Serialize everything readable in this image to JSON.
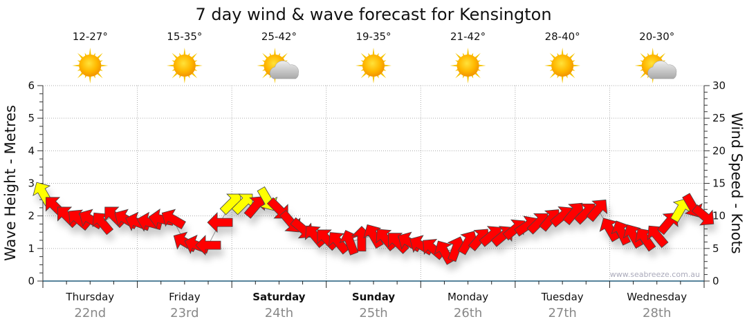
{
  "chart_data": {
    "type": "line",
    "title": "7 day wind & wave forecast for Kensington",
    "ylabel_left": "Wave Height - Metres",
    "ylabel_right": "Wind Speed - Knots",
    "ylim_left": [
      0,
      6
    ],
    "ylim_right": [
      0,
      30
    ],
    "yticks_left": [
      "0",
      "1",
      "2",
      "3",
      "4",
      "5",
      "6"
    ],
    "yticks_right": [
      "0",
      "5",
      "10",
      "15",
      "20",
      "25",
      "30"
    ],
    "grid": true,
    "watermark": "www.seabreeze.com.au",
    "days": [
      {
        "name": "Thursday",
        "date": "22nd",
        "temp": "12-27°",
        "icon": "sunny",
        "bold": false
      },
      {
        "name": "Friday",
        "date": "23rd",
        "temp": "15-35°",
        "icon": "sunny",
        "bold": false
      },
      {
        "name": "Saturday",
        "date": "24th",
        "temp": "25-42°",
        "icon": "partly-cloudy",
        "bold": true
      },
      {
        "name": "Sunday",
        "date": "25th",
        "temp": "19-35°",
        "icon": "sunny",
        "bold": true
      },
      {
        "name": "Monday",
        "date": "26th",
        "temp": "21-42°",
        "icon": "sunny",
        "bold": false
      },
      {
        "name": "Tuesday",
        "date": "27th",
        "temp": "28-40°",
        "icon": "sunny",
        "bold": false
      },
      {
        "name": "Wednesday",
        "date": "28th",
        "temp": "20-30°",
        "icon": "partly-cloudy",
        "bold": false
      }
    ],
    "wind": {
      "name": "Wind speed (knots) and direction",
      "hours_step": 3,
      "speed_knots": [
        13.5,
        11.5,
        10,
        9.5,
        9.5,
        9,
        10,
        9.5,
        9,
        9,
        9.5,
        9.5,
        6,
        5.5,
        5.5,
        9,
        12,
        12,
        11.5,
        12.5,
        11,
        9,
        8,
        7,
        6.5,
        6,
        6,
        6.5,
        7,
        6.5,
        6,
        6,
        5.5,
        5,
        4.5,
        5,
        6,
        6.5,
        7,
        7,
        8,
        8.5,
        9,
        9.5,
        10,
        10.5,
        10.5,
        11,
        8,
        7.5,
        7,
        6.5,
        7,
        9,
        11,
        11.5,
        10
      ],
      "arrow_heading_deg": [
        330,
        315,
        315,
        310,
        300,
        320,
        315,
        300,
        290,
        285,
        280,
        300,
        300,
        290,
        270,
        270,
        45,
        45,
        40,
        150,
        135,
        140,
        130,
        320,
        315,
        320,
        340,
        0,
        330,
        320,
        315,
        300,
        300,
        310,
        330,
        20,
        30,
        40,
        50,
        50,
        50,
        55,
        45,
        40,
        50,
        40,
        45,
        40,
        330,
        335,
        330,
        325,
        320,
        40,
        30,
        150,
        130
      ],
      "colors": [
        "#ffff00",
        "#ff0000",
        "#ff0000",
        "#ff0000",
        "#ff0000",
        "#ff0000",
        "#ff0000",
        "#ff0000",
        "#ff0000",
        "#ff0000",
        "#ff0000",
        "#ff0000",
        "#ff0000",
        "#ff0000",
        "#ff0000",
        "#ff0000",
        "#ffff00",
        "#ffff00",
        "#ff0000",
        "#ffff00",
        "#ff0000",
        "#ff0000",
        "#ff0000",
        "#ff0000",
        "#ff0000",
        "#ff0000",
        "#ff0000",
        "#ff0000",
        "#ff0000",
        "#ff0000",
        "#ff0000",
        "#ff0000",
        "#ff0000",
        "#ff0000",
        "#ff0000",
        "#ff0000",
        "#ff0000",
        "#ff0000",
        "#ff0000",
        "#ff0000",
        "#ff0000",
        "#ff0000",
        "#ff0000",
        "#ff0000",
        "#ff0000",
        "#ff0000",
        "#ff0000",
        "#ff0000",
        "#ff0000",
        "#ff0000",
        "#ff0000",
        "#ff0000",
        "#ff0000",
        "#ff0000",
        "#ffff00",
        "#ff0000",
        "#ff0000"
      ]
    }
  }
}
